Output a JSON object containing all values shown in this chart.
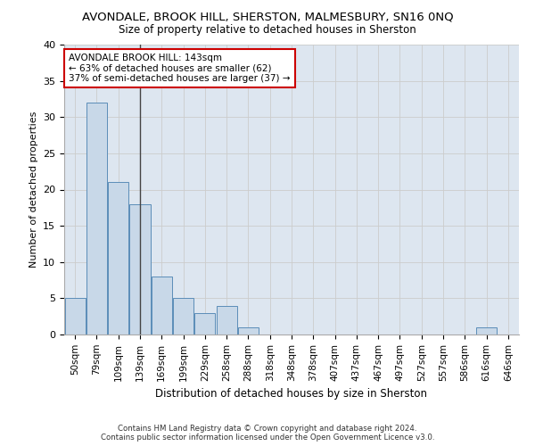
{
  "title": "AVONDALE, BROOK HILL, SHERSTON, MALMESBURY, SN16 0NQ",
  "subtitle": "Size of property relative to detached houses in Sherston",
  "xlabel": "Distribution of detached houses by size in Sherston",
  "ylabel": "Number of detached properties",
  "bins": [
    "50sqm",
    "79sqm",
    "109sqm",
    "139sqm",
    "169sqm",
    "199sqm",
    "229sqm",
    "258sqm",
    "288sqm",
    "318sqm",
    "348sqm",
    "378sqm",
    "407sqm",
    "437sqm",
    "467sqm",
    "497sqm",
    "527sqm",
    "557sqm",
    "586sqm",
    "616sqm",
    "646sqm"
  ],
  "values": [
    5,
    32,
    21,
    18,
    8,
    5,
    3,
    4,
    1,
    0,
    0,
    0,
    0,
    0,
    0,
    0,
    0,
    0,
    0,
    1,
    0
  ],
  "bar_color": "#c8d8e8",
  "bar_edge_color": "#5b8db8",
  "marker_bin_index": 3,
  "marker_label": "AVONDALE BROOK HILL: 143sqm",
  "marker_line1": "← 63% of detached houses are smaller (62)",
  "marker_line2": "37% of semi-detached houses are larger (37) →",
  "annotation_box_color": "#ffffff",
  "annotation_box_edge": "#cc0000",
  "ylim": [
    0,
    40
  ],
  "yticks": [
    0,
    5,
    10,
    15,
    20,
    25,
    30,
    35,
    40
  ],
  "grid_color": "#cccccc",
  "bg_color": "#dde6f0",
  "fig_color": "#ffffff",
  "footer_line1": "Contains HM Land Registry data © Crown copyright and database right 2024.",
  "footer_line2": "Contains public sector information licensed under the Open Government Licence v3.0."
}
